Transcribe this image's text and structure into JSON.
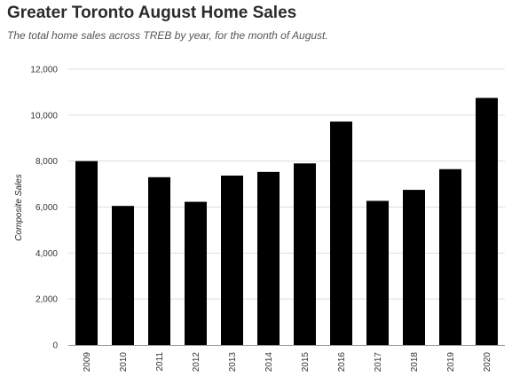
{
  "header": {
    "title": "Greater Toronto August Home Sales",
    "subtitle": "The total home sales across TREB by year, for the month of August."
  },
  "chart_data": {
    "type": "bar",
    "title": "Greater Toronto August Home Sales",
    "subtitle": "The total home sales across TREB by year, for the month of August.",
    "xlabel": "",
    "ylabel": "Composite Sales",
    "categories": [
      "2009",
      "2010",
      "2011",
      "2012",
      "2013",
      "2014",
      "2015",
      "2016",
      "2017",
      "2018",
      "2019",
      "2020"
    ],
    "values": [
      8000,
      6050,
      7300,
      6230,
      7370,
      7530,
      7900,
      9720,
      6270,
      6750,
      7650,
      10750
    ],
    "ylim": [
      0,
      12000
    ],
    "yticks": [
      0,
      2000,
      4000,
      6000,
      8000,
      10000,
      12000
    ],
    "ytick_labels": [
      "0",
      "2,000",
      "4,000",
      "6,000",
      "8,000",
      "10,000",
      "12,000"
    ],
    "grid": true,
    "bar_color": "#000000",
    "grid_color": "#dddddd"
  }
}
